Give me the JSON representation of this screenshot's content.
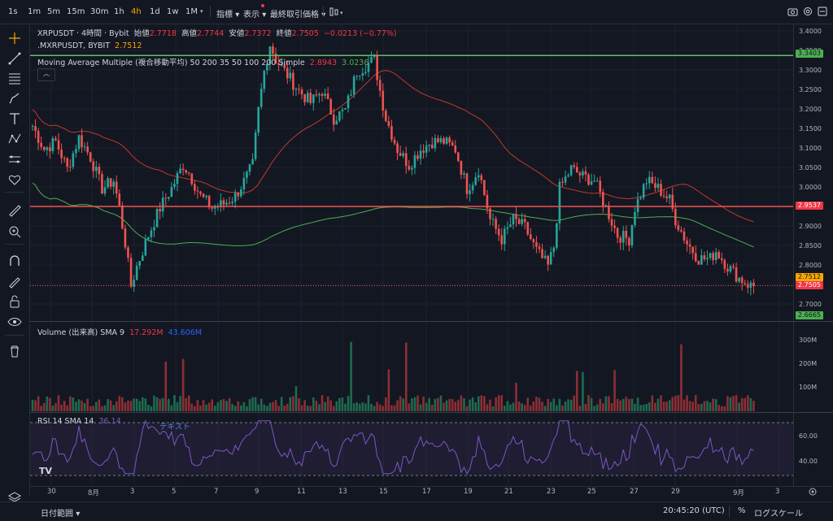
{
  "toolbar": {
    "timeframes": [
      "1s",
      "1m",
      "5m",
      "15m",
      "30m",
      "1h",
      "4h",
      "1d",
      "1w",
      "1M"
    ],
    "active_timeframe": "4h",
    "indicators_label": "指標",
    "display_label": "表示",
    "last_price_label": "最終取引価格"
  },
  "legend": {
    "symbol": "XRPUSDT · 4時間 · Bybit",
    "open_label": "始値",
    "open": "2.7718",
    "high_label": "高値",
    "high": "2.7744",
    "low_label": "安値",
    "low": "2.7372",
    "close_label": "終値",
    "close": "2.7505",
    "change": "−0.0213 (−0.77%)",
    "mark_symbol": ".MXRPUSDT, BYBIT",
    "mark_price": "2.7512",
    "ma_label": "Moving Average Multiple (複合移動平均) 50 200 35 50 100 200 Simple",
    "ma_value1": "2.8943",
    "ma_value2": "3.0236"
  },
  "price_scale": [
    "3.4000",
    "3.3500",
    "3.3000",
    "3.2500",
    "3.2000",
    "3.1500",
    "3.1000",
    "3.0500",
    "3.0000",
    "2.9500",
    "2.9000",
    "2.8500",
    "2.8000",
    "2.7500",
    "2.7000"
  ],
  "price_tags": {
    "green_top": "3.3403",
    "red_line": "2.9537",
    "mark": "2.7512",
    "last": "2.7505",
    "green_bottom": "2.6665"
  },
  "volume": {
    "label": "Volume (出来高) SMA 9",
    "value1": "17.292M",
    "value2": "43.606M",
    "scale": [
      "300M",
      "200M",
      "100M"
    ]
  },
  "rsi": {
    "label": "RSI 14 SMA 14",
    "value": "36.14",
    "annotation": "テキスト",
    "scale": [
      "60.00",
      "40.00"
    ]
  },
  "x_axis": [
    "30",
    "8月",
    "3",
    "5",
    "7",
    "9",
    "11",
    "13",
    "15",
    "17",
    "19",
    "21",
    "23",
    "25",
    "27",
    "29",
    "9月",
    "3"
  ],
  "bottom": {
    "date_range": "日付範囲",
    "time": "20:45:20 (UTC)",
    "percent": "%",
    "log_scale": "ログスケール"
  },
  "chart_data": {
    "type": "candlestick",
    "symbol": "XRPUSDT",
    "interval": "4h",
    "ylim": [
      2.66,
      3.42
    ],
    "keypoints": [
      [
        0,
        3.16
      ],
      [
        4,
        3.1
      ],
      [
        8,
        3.12
      ],
      [
        12,
        3.05
      ],
      [
        16,
        3.13
      ],
      [
        20,
        3.08
      ],
      [
        24,
        3.0
      ],
      [
        28,
        3.02
      ],
      [
        30,
        2.95
      ],
      [
        32,
        2.86
      ],
      [
        34,
        2.75
      ],
      [
        36,
        2.8
      ],
      [
        40,
        2.88
      ],
      [
        44,
        2.95
      ],
      [
        48,
        3.0
      ],
      [
        52,
        3.06
      ],
      [
        54,
        3.04
      ],
      [
        58,
        2.98
      ],
      [
        62,
        2.95
      ],
      [
        66,
        2.96
      ],
      [
        70,
        2.98
      ],
      [
        74,
        3.03
      ],
      [
        76,
        3.06
      ],
      [
        78,
        3.2
      ],
      [
        80,
        3.3
      ],
      [
        82,
        3.37
      ],
      [
        84,
        3.33
      ],
      [
        88,
        3.29
      ],
      [
        92,
        3.25
      ],
      [
        96,
        3.22
      ],
      [
        100,
        3.25
      ],
      [
        104,
        3.18
      ],
      [
        108,
        3.2
      ],
      [
        112,
        3.3
      ],
      [
        116,
        3.32
      ],
      [
        118,
        3.33
      ],
      [
        120,
        3.25
      ],
      [
        122,
        3.18
      ],
      [
        126,
        3.1
      ],
      [
        130,
        3.06
      ],
      [
        134,
        3.1
      ],
      [
        138,
        3.12
      ],
      [
        142,
        3.12
      ],
      [
        146,
        3.1
      ],
      [
        150,
        3.0
      ],
      [
        152,
        3.02
      ],
      [
        154,
        3.05
      ],
      [
        158,
        2.92
      ],
      [
        162,
        2.87
      ],
      [
        166,
        2.92
      ],
      [
        170,
        2.9
      ],
      [
        174,
        2.84
      ],
      [
        178,
        2.8
      ],
      [
        180,
        2.85
      ],
      [
        182,
        3.0
      ],
      [
        186,
        3.05
      ],
      [
        190,
        3.03
      ],
      [
        194,
        3.02
      ],
      [
        198,
        2.95
      ],
      [
        202,
        2.88
      ],
      [
        206,
        2.87
      ],
      [
        208,
        2.95
      ],
      [
        212,
        3.02
      ],
      [
        216,
        3.0
      ],
      [
        220,
        2.97
      ],
      [
        222,
        2.92
      ],
      [
        226,
        2.86
      ],
      [
        230,
        2.82
      ],
      [
        234,
        2.82
      ],
      [
        236,
        2.84
      ],
      [
        240,
        2.8
      ],
      [
        244,
        2.77
      ],
      [
        248,
        2.75
      ]
    ],
    "lines": {
      "green_horizontal": 3.3403,
      "red_horizontal": 2.9537,
      "dotted_last": 2.7505
    },
    "rsi_range": [
      20,
      80
    ]
  }
}
